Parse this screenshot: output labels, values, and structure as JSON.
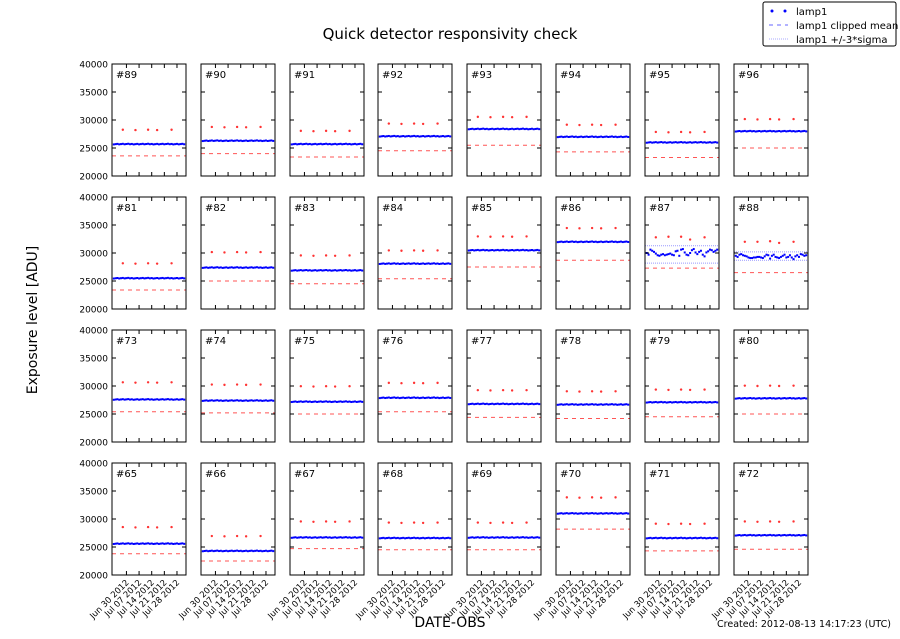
{
  "chart_data": {
    "type": "scatter",
    "title": "Quick detector responsivity check",
    "xlabel": "DATE-OBS",
    "ylabel": "Exposure level [ADU]",
    "footer": "Created: 2012-08-13 14:17:23 (UTC)",
    "ylim": [
      20000,
      40000
    ],
    "yticks": [
      "20000",
      "25000",
      "30000",
      "35000",
      "40000"
    ],
    "xlim": [
      "2012-06-22",
      "2012-08-02"
    ],
    "xticks": [
      "Jun 30 2012",
      "Jul 07 2012",
      "Jul 14 2012",
      "Jul 21 2012",
      "Jul 28 2012"
    ],
    "xtick_dates": [
      "2012-06-30",
      "2012-07-07",
      "2012-07-14",
      "2012-07-21",
      "2012-07-28"
    ],
    "grid": false,
    "legend": {
      "placement": "top-right",
      "entries": [
        "lamp1",
        "lamp1 clipped mean",
        "lamp1 +/-3*sigma"
      ]
    },
    "colors": {
      "lamp1": "#0000ff",
      "clipped_mean": "#ff4444",
      "sigma": "#9999ff",
      "upper_points": "#ff3333"
    },
    "lamp1_dates": {
      "start": "2012-06-23",
      "end": "2012-08-01",
      "step_days": 1
    },
    "upper_point_dates": [
      "2012-06-28",
      "2012-07-05",
      "2012-07-12",
      "2012-07-17",
      "2012-07-25"
    ],
    "panels": [
      {
        "label": "#89",
        "lamp1": 25700,
        "clipped_mean": 23600,
        "upper": 28200
      },
      {
        "label": "#90",
        "lamp1": 26300,
        "clipped_mean": 24000,
        "upper": 28700
      },
      {
        "label": "#91",
        "lamp1": 25700,
        "clipped_mean": 23400,
        "upper": 28000
      },
      {
        "label": "#92",
        "lamp1": 27100,
        "clipped_mean": 24500,
        "upper": 29300
      },
      {
        "label": "#93",
        "lamp1": 28400,
        "clipped_mean": 25500,
        "upper": 30500
      },
      {
        "label": "#94",
        "lamp1": 27000,
        "clipped_mean": 24300,
        "upper": 29100
      },
      {
        "label": "#95",
        "lamp1": 26000,
        "clipped_mean": 23300,
        "upper": 27800
      },
      {
        "label": "#96",
        "lamp1": 28000,
        "clipped_mean": 25000,
        "upper": 30100
      },
      {
        "label": "#81",
        "lamp1": 25500,
        "clipped_mean": 23400,
        "upper": 28100
      },
      {
        "label": "#82",
        "lamp1": 27400,
        "clipped_mean": 25000,
        "upper": 30100
      },
      {
        "label": "#83",
        "lamp1": 26900,
        "clipped_mean": 24500,
        "upper": 29500
      },
      {
        "label": "#84",
        "lamp1": 28100,
        "clipped_mean": 25400,
        "upper": 30400
      },
      {
        "label": "#85",
        "lamp1": 30500,
        "clipped_mean": 27500,
        "upper": 32900
      },
      {
        "label": "#86",
        "lamp1": 32000,
        "clipped_mean": 28700,
        "upper": 34400
      },
      {
        "label": "#87",
        "lamp1": [
          30000,
          29700,
          30600,
          30400,
          30200,
          29900,
          29600,
          29500,
          29700,
          29800,
          29600,
          29700,
          29800,
          29900,
          29700,
          29600,
          30300,
          30400,
          29500,
          30600,
          30700,
          30100,
          29700,
          29600,
          30000,
          30500,
          30700,
          30100,
          29800,
          30200,
          30400,
          29700,
          29400,
          30100,
          30300,
          30600,
          30500,
          30200,
          30400,
          30600
        ],
        "clipped_mean": 27300,
        "upper": [
          32800,
          32900,
          32900,
          32400,
          32800
        ],
        "sigma": [
          28200,
          31300
        ]
      },
      {
        "label": "#88",
        "lamp1": [
          29500,
          29300,
          29700,
          29800,
          29600,
          29500,
          29400,
          29200,
          29100,
          29100,
          29200,
          29200,
          29300,
          29300,
          29200,
          29100,
          29400,
          29700,
          29600,
          29000,
          29500,
          29700,
          29300,
          29200,
          29100,
          29300,
          29500,
          29700,
          29200,
          29300,
          29600,
          29200,
          28900,
          29400,
          29600,
          29300,
          29800,
          29700,
          29500,
          29600
        ],
        "clipped_mean": 26500,
        "upper": [
          32000,
          32000,
          32100,
          31800,
          32000
        ],
        "sigma": [
          28700,
          30200
        ]
      },
      {
        "label": "#73",
        "lamp1": 27600,
        "clipped_mean": 25400,
        "upper": 30600
      },
      {
        "label": "#74",
        "lamp1": 27400,
        "clipped_mean": 25200,
        "upper": 30200
      },
      {
        "label": "#75",
        "lamp1": 27200,
        "clipped_mean": 25000,
        "upper": 29900
      },
      {
        "label": "#76",
        "lamp1": 27900,
        "clipped_mean": 25400,
        "upper": 30500
      },
      {
        "label": "#77",
        "lamp1": 26800,
        "clipped_mean": 24400,
        "upper": 29200
      },
      {
        "label": "#78",
        "lamp1": 26700,
        "clipped_mean": 24200,
        "upper": 29000
      },
      {
        "label": "#79",
        "lamp1": 27100,
        "clipped_mean": 24500,
        "upper": 29300
      },
      {
        "label": "#80",
        "lamp1": 27800,
        "clipped_mean": 25000,
        "upper": 30000
      },
      {
        "label": "#65",
        "lamp1": 25600,
        "clipped_mean": 23800,
        "upper": 28500
      },
      {
        "label": "#66",
        "lamp1": 24300,
        "clipped_mean": 22500,
        "upper": 26900
      },
      {
        "label": "#67",
        "lamp1": 26700,
        "clipped_mean": 24700,
        "upper": 29500
      },
      {
        "label": "#68",
        "lamp1": 26600,
        "clipped_mean": 24500,
        "upper": 29300
      },
      {
        "label": "#69",
        "lamp1": 26700,
        "clipped_mean": 24500,
        "upper": 29300
      },
      {
        "label": "#70",
        "lamp1": 31000,
        "clipped_mean": 28200,
        "upper": 33800
      },
      {
        "label": "#71",
        "lamp1": 26600,
        "clipped_mean": 24300,
        "upper": 29100
      },
      {
        "label": "#72",
        "lamp1": 27100,
        "clipped_mean": 24600,
        "upper": 29500
      }
    ]
  }
}
